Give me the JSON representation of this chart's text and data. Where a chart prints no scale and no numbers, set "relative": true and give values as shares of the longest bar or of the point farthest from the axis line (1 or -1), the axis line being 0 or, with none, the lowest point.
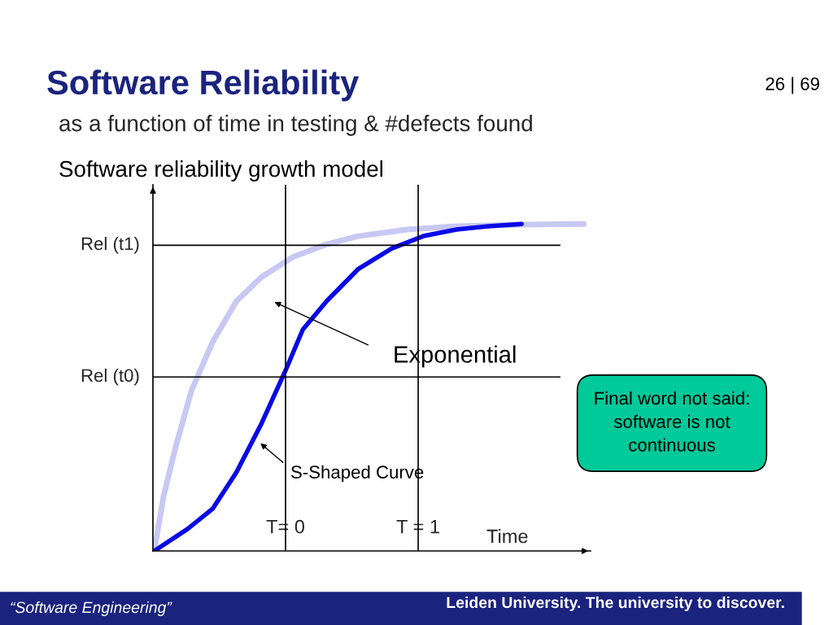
{
  "chart_data": {
    "type": "line",
    "title": "Software Reliability",
    "subtitle": "as a function of time in testing & #defects found",
    "xlabel": "Time",
    "relative": true,
    "xlim": [
      -1,
      2.3
    ],
    "xticks": [
      {
        "value": 0,
        "label": "T= 0"
      },
      {
        "value": 1,
        "label": "T = 1"
      }
    ],
    "series": [
      {
        "color": "#c8c8f4",
        "x": [
          -0.99,
          -0.92,
          -0.83,
          -0.71,
          -0.55,
          -0.37,
          -0.18,
          0.06,
          0.31,
          0.55,
          0.92,
          1.29,
          1.78,
          2.25
        ],
        "values": [
          0,
          0.167,
          0.316,
          0.49,
          0.639,
          0.764,
          0.838,
          0.9,
          0.938,
          0.963,
          0.983,
          0.993,
          0.998,
          1.0
        ]
      },
      {
        "color": "#0a0ae6",
        "x": [
          -0.99,
          -0.74,
          -0.55,
          -0.37,
          -0.18,
          0,
          0.13,
          0.31,
          0.55,
          0.8,
          1.04,
          1.29,
          1.53,
          1.78
        ],
        "values": [
          0,
          0.067,
          0.129,
          0.241,
          0.391,
          0.552,
          0.677,
          0.764,
          0.863,
          0.925,
          0.963,
          0.983,
          0.993,
          1.0
        ]
      }
    ],
    "ref_lines": [
      {
        "axis": "y",
        "value": 0.935,
        "label": "Rel (t1)"
      },
      {
        "axis": "y",
        "value": 0.532,
        "label": "Rel (t0)"
      },
      {
        "axis": "x",
        "value": 0
      },
      {
        "axis": "x",
        "value": 1
      }
    ],
    "annotations": [
      "Software reliability growth model",
      "Exponential",
      "S-Shaped Curve",
      "Final word not said:\nsoftware is not\ncontinuous",
      "26 | 69",
      "“Software Engineering”",
      "Leiden University. The university to discover."
    ],
    "grid": false
  }
}
